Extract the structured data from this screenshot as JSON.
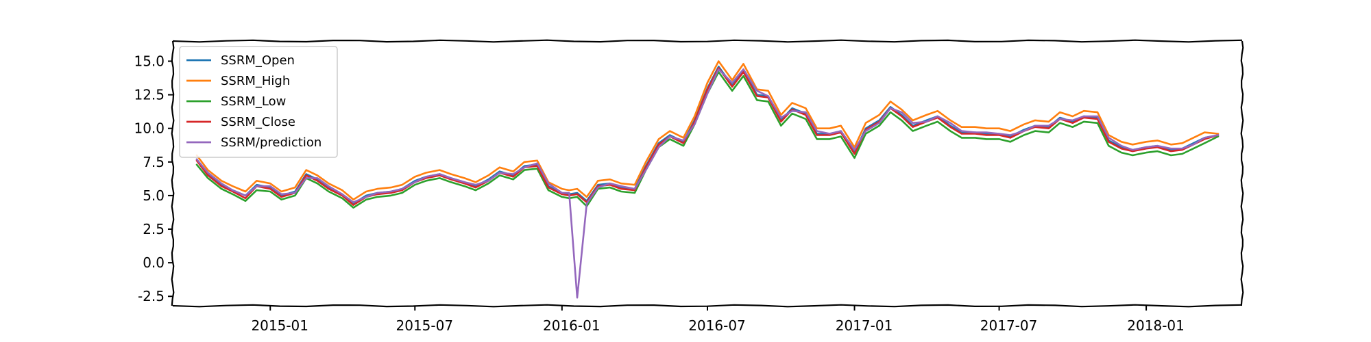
{
  "chart_data": {
    "type": "line",
    "title": "",
    "xlabel": "",
    "ylabel": "",
    "ylim": [
      -3.2,
      16.5
    ],
    "xlim": [
      "2014-09-01",
      "2018-05-01"
    ],
    "grid": false,
    "legend_position": "top-left",
    "x_ticks": [
      "2015-01",
      "2015-07",
      "2016-01",
      "2016-07",
      "2017-01",
      "2017-07",
      "2018-01"
    ],
    "y_ticks": [
      15.0,
      12.5,
      10.0,
      7.5,
      5.0,
      2.5,
      0.0,
      -2.5
    ],
    "y_tick_labels": [
      "15.0",
      "12.5",
      "10.0",
      "7.5",
      "5.0",
      "2.5",
      "0.0",
      "-2.5"
    ],
    "x": [
      "2014-10-01",
      "2014-10-15",
      "2014-11-01",
      "2014-11-15",
      "2014-12-01",
      "2014-12-15",
      "2015-01-01",
      "2015-01-15",
      "2015-02-01",
      "2015-02-15",
      "2015-03-01",
      "2015-03-15",
      "2015-04-01",
      "2015-04-15",
      "2015-05-01",
      "2015-05-15",
      "2015-06-01",
      "2015-06-15",
      "2015-07-01",
      "2015-07-15",
      "2015-08-01",
      "2015-08-15",
      "2015-09-01",
      "2015-09-15",
      "2015-10-01",
      "2015-10-15",
      "2015-11-01",
      "2015-11-15",
      "2015-12-01",
      "2015-12-15",
      "2016-01-01",
      "2016-01-10",
      "2016-01-20",
      "2016-02-01",
      "2016-02-15",
      "2016-03-01",
      "2016-03-15",
      "2016-04-01",
      "2016-04-15",
      "2016-05-01",
      "2016-05-15",
      "2016-06-01",
      "2016-06-15",
      "2016-07-01",
      "2016-07-15",
      "2016-08-01",
      "2016-08-15",
      "2016-09-01",
      "2016-09-15",
      "2016-10-01",
      "2016-10-15",
      "2016-11-01",
      "2016-11-15",
      "2016-12-01",
      "2016-12-15",
      "2017-01-01",
      "2017-01-15",
      "2017-02-01",
      "2017-02-15",
      "2017-03-01",
      "2017-03-15",
      "2017-04-01",
      "2017-04-15",
      "2017-05-01",
      "2017-05-15",
      "2017-06-01",
      "2017-06-15",
      "2017-07-01",
      "2017-07-15",
      "2017-08-01",
      "2017-08-15",
      "2017-09-01",
      "2017-09-15",
      "2017-10-01",
      "2017-10-15",
      "2017-11-01",
      "2017-11-15",
      "2017-12-01",
      "2017-12-15",
      "2018-01-01",
      "2018-01-15",
      "2018-02-01",
      "2018-02-15",
      "2018-03-01",
      "2018-03-15",
      "2018-04-01"
    ],
    "series": [
      {
        "name": "SSRM_Open",
        "color": "#1f77b4",
        "values": [
          7.7,
          6.6,
          5.8,
          5.4,
          5.0,
          5.8,
          5.6,
          5.0,
          5.3,
          6.6,
          6.2,
          5.6,
          5.1,
          4.4,
          5.0,
          5.2,
          5.3,
          5.5,
          6.1,
          6.4,
          6.6,
          6.3,
          6.0,
          5.7,
          6.2,
          6.8,
          6.5,
          7.2,
          7.3,
          5.7,
          5.2,
          5.1,
          5.2,
          4.6,
          5.8,
          5.9,
          5.6,
          5.5,
          7.2,
          8.9,
          9.5,
          9.0,
          10.6,
          13.0,
          14.6,
          13.2,
          14.3,
          12.5,
          12.4,
          10.6,
          11.5,
          11.1,
          9.6,
          9.6,
          9.8,
          8.2,
          10.0,
          10.6,
          11.6,
          11.0,
          10.2,
          10.6,
          10.9,
          10.2,
          9.7,
          9.7,
          9.6,
          9.6,
          9.4,
          9.9,
          10.2,
          10.1,
          10.8,
          10.5,
          10.9,
          10.8,
          9.1,
          8.6,
          8.4,
          8.6,
          8.7,
          8.4,
          8.5,
          8.9,
          9.3,
          9.5
        ]
      },
      {
        "name": "SSRM_High",
        "color": "#ff7f0e",
        "values": [
          8.0,
          6.9,
          6.1,
          5.7,
          5.3,
          6.1,
          5.9,
          5.3,
          5.6,
          6.9,
          6.5,
          5.9,
          5.4,
          4.7,
          5.3,
          5.5,
          5.6,
          5.8,
          6.4,
          6.7,
          6.9,
          6.6,
          6.3,
          6.0,
          6.5,
          7.1,
          6.8,
          7.5,
          7.6,
          6.0,
          5.5,
          5.4,
          5.5,
          4.9,
          6.1,
          6.2,
          5.9,
          5.8,
          7.5,
          9.2,
          9.8,
          9.3,
          10.9,
          13.4,
          15.0,
          13.6,
          14.8,
          12.9,
          12.8,
          11.0,
          11.9,
          11.5,
          10.0,
          10.0,
          10.2,
          8.6,
          10.4,
          11.0,
          12.0,
          11.4,
          10.6,
          11.0,
          11.3,
          10.6,
          10.1,
          10.1,
          10.0,
          10.0,
          9.8,
          10.3,
          10.6,
          10.5,
          11.2,
          10.9,
          11.3,
          11.2,
          9.5,
          9.0,
          8.8,
          9.0,
          9.1,
          8.8,
          8.9,
          9.3,
          9.7,
          9.6
        ]
      },
      {
        "name": "SSRM_Low",
        "color": "#2ca02c",
        "values": [
          7.3,
          6.3,
          5.5,
          5.1,
          4.6,
          5.4,
          5.3,
          4.7,
          5.0,
          6.3,
          5.9,
          5.3,
          4.8,
          4.1,
          4.7,
          4.9,
          5.0,
          5.2,
          5.8,
          6.1,
          6.3,
          6.0,
          5.7,
          5.4,
          5.9,
          6.5,
          6.2,
          6.9,
          7.0,
          5.4,
          4.9,
          4.8,
          4.9,
          4.2,
          5.5,
          5.6,
          5.3,
          5.2,
          6.9,
          8.6,
          9.2,
          8.7,
          10.3,
          12.6,
          14.2,
          12.8,
          13.9,
          12.1,
          12.0,
          10.2,
          11.1,
          10.7,
          9.2,
          9.2,
          9.4,
          7.8,
          9.6,
          10.2,
          11.2,
          10.6,
          9.8,
          10.2,
          10.5,
          9.8,
          9.3,
          9.3,
          9.2,
          9.2,
          9.0,
          9.5,
          9.8,
          9.7,
          10.4,
          10.1,
          10.5,
          10.4,
          8.7,
          8.2,
          8.0,
          8.2,
          8.3,
          8.0,
          8.1,
          8.5,
          8.9,
          9.4
        ]
      },
      {
        "name": "SSRM_Close",
        "color": "#d62728",
        "values": [
          7.6,
          6.5,
          5.7,
          5.3,
          4.8,
          5.7,
          5.5,
          4.9,
          5.2,
          6.5,
          6.1,
          5.5,
          5.0,
          4.3,
          4.9,
          5.1,
          5.2,
          5.4,
          6.0,
          6.3,
          6.5,
          6.2,
          5.9,
          5.6,
          6.1,
          6.7,
          6.4,
          7.1,
          7.2,
          5.6,
          5.1,
          5.0,
          5.1,
          4.5,
          5.7,
          5.8,
          5.5,
          5.4,
          7.1,
          8.8,
          9.4,
          8.9,
          10.5,
          12.9,
          14.5,
          13.1,
          14.2,
          12.4,
          12.3,
          10.5,
          11.4,
          11.0,
          9.5,
          9.5,
          9.7,
          8.1,
          9.9,
          10.5,
          11.5,
          10.9,
          10.1,
          10.5,
          10.8,
          10.1,
          9.6,
          9.6,
          9.5,
          9.5,
          9.3,
          9.8,
          10.1,
          10.0,
          10.7,
          10.4,
          10.8,
          10.7,
          9.0,
          8.5,
          8.3,
          8.5,
          8.6,
          8.3,
          8.4,
          8.8,
          9.2,
          9.5
        ]
      },
      {
        "name": "SSRM/prediction",
        "color": "#9467bd",
        "values": [
          7.7,
          6.7,
          5.9,
          5.4,
          5.0,
          5.7,
          5.7,
          5.1,
          5.2,
          6.3,
          6.3,
          5.7,
          5.1,
          4.5,
          4.9,
          5.2,
          5.3,
          5.5,
          6.0,
          6.4,
          6.6,
          6.3,
          6.0,
          5.8,
          6.1,
          6.7,
          6.6,
          7.1,
          7.4,
          5.9,
          5.2,
          5.2,
          -2.6,
          4.4,
          5.6,
          5.9,
          5.7,
          5.5,
          6.9,
          8.6,
          9.4,
          9.1,
          10.3,
          12.6,
          14.4,
          13.4,
          14.4,
          12.8,
          12.4,
          10.8,
          11.3,
          11.2,
          9.8,
          9.6,
          9.8,
          8.4,
          9.8,
          10.4,
          11.5,
          11.2,
          10.4,
          10.5,
          10.9,
          10.4,
          9.8,
          9.7,
          9.7,
          9.6,
          9.5,
          9.8,
          10.2,
          10.2,
          10.7,
          10.6,
          10.9,
          10.9,
          9.3,
          8.7,
          8.4,
          8.6,
          8.7,
          8.5,
          8.5,
          8.8,
          9.3,
          9.5
        ]
      }
    ]
  }
}
